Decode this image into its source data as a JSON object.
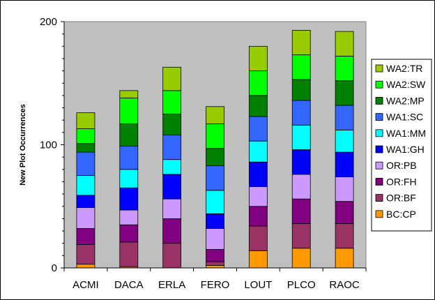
{
  "chart_data": {
    "type": "bar",
    "stacked": true,
    "title": "",
    "xlabel": "",
    "ylabel": "New Plot Occurrences",
    "ylim": [
      0,
      200
    ],
    "yticks": [
      0,
      100,
      200
    ],
    "grid": false,
    "plot_background": "#c0c0c0",
    "legend_position": "right",
    "categories": [
      "ACMI",
      "DACA",
      "ERLA",
      "FERO",
      "LOUT",
      "PLCO",
      "RAOC"
    ],
    "series": [
      {
        "name": "BC:CP",
        "color": "#ff9900",
        "values": [
          3,
          1,
          0,
          2,
          14,
          16,
          16
        ]
      },
      {
        "name": "OR:BF",
        "color": "#993366",
        "values": [
          16,
          20,
          20,
          3,
          20,
          20,
          20
        ]
      },
      {
        "name": "OR:FH",
        "color": "#800080",
        "values": [
          13,
          14,
          20,
          10,
          16,
          20,
          18
        ]
      },
      {
        "name": "OR:PB",
        "color": "#cc99ff",
        "values": [
          17,
          12,
          16,
          17,
          16,
          20,
          20
        ]
      },
      {
        "name": "WA1:GH",
        "color": "#0000ff",
        "values": [
          10,
          18,
          20,
          12,
          20,
          20,
          20
        ]
      },
      {
        "name": "WA1:MM",
        "color": "#00ffff",
        "values": [
          16,
          15,
          12,
          19,
          17,
          20,
          18
        ]
      },
      {
        "name": "WA1:SC",
        "color": "#3366ff",
        "values": [
          19,
          19,
          20,
          20,
          20,
          20,
          20
        ]
      },
      {
        "name": "WA2:MP",
        "color": "#008000",
        "values": [
          7,
          18,
          17,
          14,
          17,
          17,
          20
        ]
      },
      {
        "name": "WA2:SW",
        "color": "#00ff00",
        "values": [
          12,
          21,
          19,
          20,
          20,
          20,
          20
        ]
      },
      {
        "name": "WA2:TR",
        "color": "#99cc00",
        "values": [
          13,
          6,
          19,
          14,
          20,
          20,
          20
        ]
      }
    ]
  }
}
